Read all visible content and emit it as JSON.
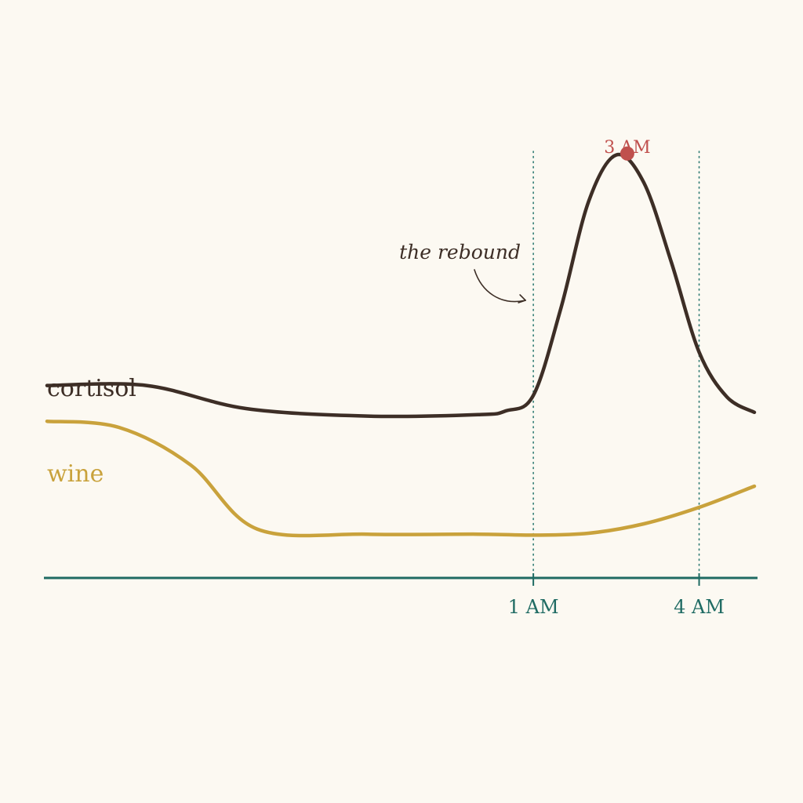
{
  "chart_data": {
    "type": "line",
    "title": "",
    "xlabel": "",
    "ylabel": "",
    "x_axis": {
      "ticks": [
        "1 AM",
        "4 AM"
      ],
      "tick_hours": [
        1,
        4
      ],
      "range_hours": [
        -7.8,
        5.0
      ]
    },
    "y_range": [
      0,
      100
    ],
    "grid": false,
    "legend": "inline labels at left",
    "series": [
      {
        "name": "cortisol",
        "color": "#3d2e26",
        "points": [
          [
            -7.8,
            40.9
          ],
          [
            -6.0,
            40.9
          ],
          [
            -4.2,
            36.0
          ],
          [
            -2.0,
            34.4
          ],
          [
            0.0,
            34.7
          ],
          [
            0.5,
            35.5
          ],
          [
            1.0,
            38.8
          ],
          [
            1.5,
            57.4
          ],
          [
            2.0,
            80.0
          ],
          [
            2.5,
            89.9
          ],
          [
            3.0,
            84.0
          ],
          [
            3.5,
            67.0
          ],
          [
            4.0,
            48.0
          ],
          [
            4.5,
            38.5
          ],
          [
            5.0,
            35.2
          ]
        ]
      },
      {
        "name": "wine",
        "color": "#c9a23c",
        "points": [
          [
            -7.8,
            33.3
          ],
          [
            -6.5,
            32.0
          ],
          [
            -5.2,
            24.0
          ],
          [
            -4.0,
            10.4
          ],
          [
            -2.0,
            9.3
          ],
          [
            0.0,
            9.3
          ],
          [
            1.0,
            9.1
          ],
          [
            2.0,
            9.5
          ],
          [
            3.0,
            11.5
          ],
          [
            4.0,
            15.0
          ],
          [
            5.0,
            19.5
          ]
        ]
      }
    ],
    "reference_lines": [
      {
        "x": 1,
        "style": "dotted",
        "color": "#2e7b73"
      },
      {
        "x": 4,
        "style": "dotted",
        "color": "#2e7b73"
      }
    ],
    "peak": {
      "series": "cortisol",
      "x": 2.7,
      "y": 90.2,
      "label": "3 AM",
      "color": "#c0504d"
    },
    "annotations": [
      {
        "text": "the rebound",
        "points_to_x": 1,
        "points_to_y": 59
      }
    ],
    "colors": {
      "background": "#fcf9f2",
      "axis": "#1f6b63",
      "axis_text": "#1f6b63",
      "annotation": "#3d2e26"
    }
  }
}
